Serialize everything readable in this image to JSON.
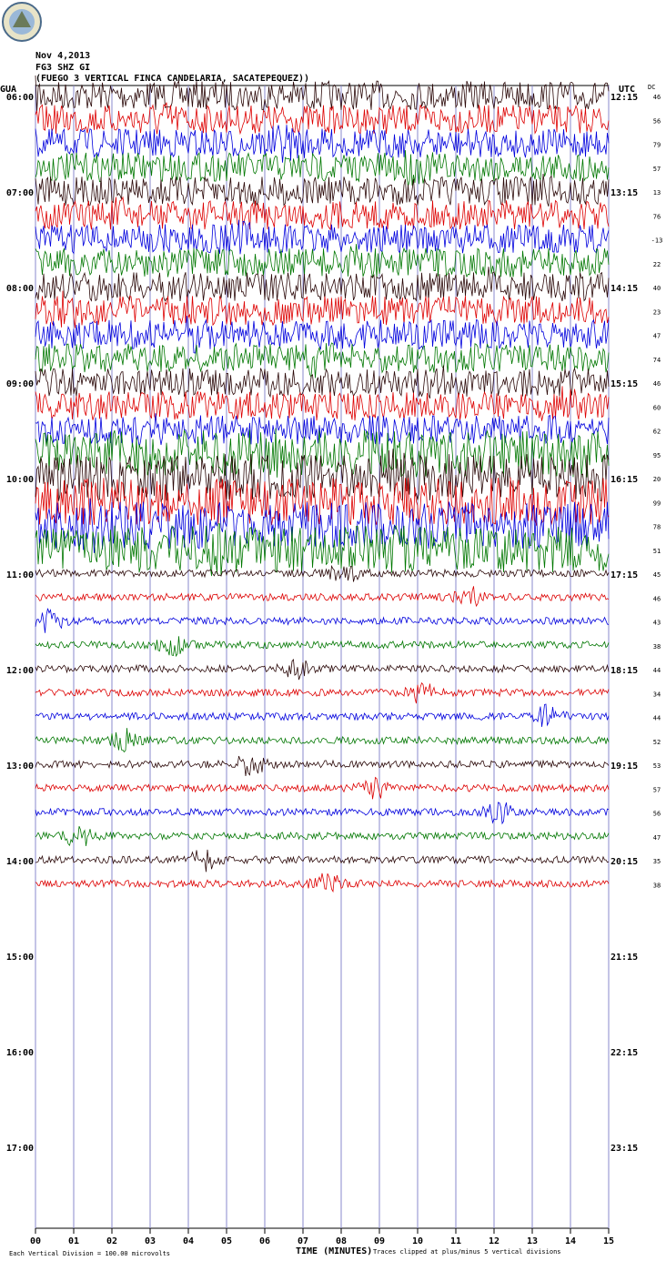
{
  "header": {
    "date": "Nov 4,2013",
    "station": "FG3 SHZ GI",
    "location": "(FUEGO 3 VERTICAL FINCA CANDELARIA, SACATEPEQUEZ))"
  },
  "left_axis": {
    "title": "GUA",
    "labels": [
      "06:00",
      "07:00",
      "08:00",
      "09:00",
      "10:00",
      "11:00",
      "12:00",
      "13:00",
      "14:00",
      "15:00",
      "16:00",
      "17:00"
    ]
  },
  "right_axis": {
    "title": "UTC",
    "labels": [
      "12:15",
      "13:15",
      "14:15",
      "15:15",
      "16:15",
      "17:15",
      "18:15",
      "19:15",
      "20:15",
      "21:15",
      "22:15",
      "23:15"
    ]
  },
  "dc": {
    "title": "DC",
    "values": [
      46,
      56,
      79,
      57,
      13,
      76,
      -13,
      22,
      40,
      23,
      47,
      74,
      46,
      60,
      62,
      95,
      20,
      99,
      78,
      51,
      45,
      46,
      43,
      38,
      44,
      34,
      44,
      52,
      53,
      57,
      56,
      47,
      35,
      38
    ]
  },
  "x_axis": {
    "labels": [
      "00",
      "01",
      "02",
      "03",
      "04",
      "05",
      "06",
      "07",
      "08",
      "09",
      "10",
      "11",
      "12",
      "13",
      "14",
      "15"
    ],
    "title": "TIME (MINUTES)"
  },
  "footer": {
    "scale": "Each Vertical Division =  100.00 microvolts",
    "clip": "Traces clipped at plus/minus 5 vertical divisions"
  }
}
